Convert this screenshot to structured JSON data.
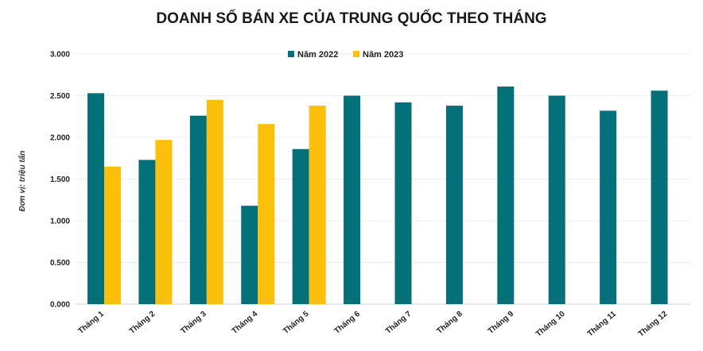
{
  "chart_data": {
    "type": "bar",
    "title": "DOANH SỐ BÁN XE CỦA TRUNG QUỐC THEO THÁNG",
    "ylabel": "Đơn vị: triệu tấn",
    "xlabel": "",
    "ylim": [
      0,
      3000
    ],
    "grid": true,
    "legend_position": "top-center",
    "y_ticks": [
      "0.000",
      "0.500",
      "1.000",
      "1.500",
      "2.000",
      "2.500",
      "3.000"
    ],
    "categories": [
      "Tháng 1",
      "Tháng 2",
      "Tháng 3",
      "Tháng 4",
      "Tháng 5",
      "Tháng 6",
      "Tháng 7",
      "Tháng 8",
      "Tháng 9",
      "Tháng 10",
      "Tháng 11",
      "Tháng 12"
    ],
    "series": [
      {
        "name": "Năm 2022",
        "color": "#04707a",
        "values": [
          2530,
          1730,
          2260,
          1180,
          1860,
          2500,
          2420,
          2380,
          2610,
          2500,
          2320,
          2560
        ]
      },
      {
        "name": "Năm 2023",
        "color": "#fcc00b",
        "values": [
          1650,
          1970,
          2450,
          2160,
          2380,
          null,
          null,
          null,
          null,
          null,
          null,
          null
        ]
      }
    ]
  }
}
